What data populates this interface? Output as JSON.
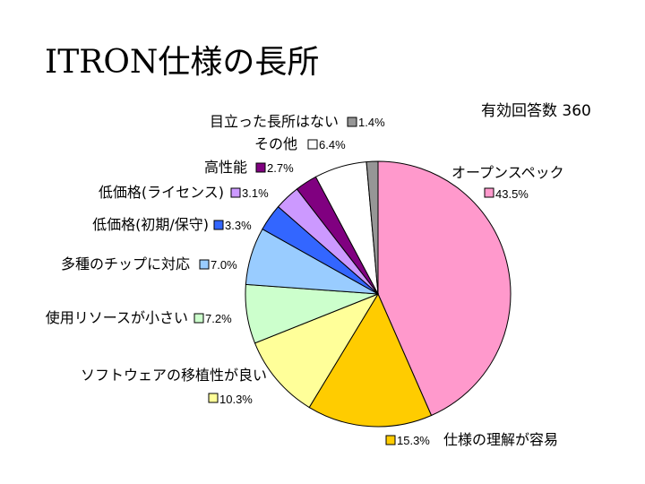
{
  "title": "ITRON仕様の長所",
  "respondents_label": "有効回答数 360",
  "chart_data": {
    "type": "pie",
    "title": "ITRON仕様の長所",
    "total_label": "有効回答数 360",
    "start": "12 o'clock, clockwise",
    "slices": [
      {
        "label": "オープンスペック",
        "value": 43.5,
        "pct_label": "43.5%",
        "color": "#FF99CC"
      },
      {
        "label": "仕様の理解が容易",
        "value": 15.3,
        "pct_label": "15.3%",
        "color": "#FFCC00"
      },
      {
        "label": "ソフトウェアの移植性が良い",
        "value": 10.3,
        "pct_label": "10.3%",
        "color": "#FFFF99"
      },
      {
        "label": "使用リソースが小さい",
        "value": 7.2,
        "pct_label": "7.2%",
        "color": "#CCFFCC"
      },
      {
        "label": "多種のチップに対応",
        "value": 7.0,
        "pct_label": "7.0%",
        "color": "#99CCFF"
      },
      {
        "label": "低価格(初期/保守)",
        "value": 3.3,
        "pct_label": "3.3%",
        "color": "#3366FF"
      },
      {
        "label": "低価格(ライセンス)",
        "value": 3.1,
        "pct_label": "3.1%",
        "color": "#CC99FF"
      },
      {
        "label": "高性能",
        "value": 2.7,
        "pct_label": "2.7%",
        "color": "#800080"
      },
      {
        "label": "その他",
        "value": 6.4,
        "pct_label": "6.4%",
        "color": "#FFFFFF"
      },
      {
        "label": "目立った長所はない",
        "value": 1.4,
        "pct_label": "1.4%",
        "color": "#969696"
      }
    ]
  }
}
